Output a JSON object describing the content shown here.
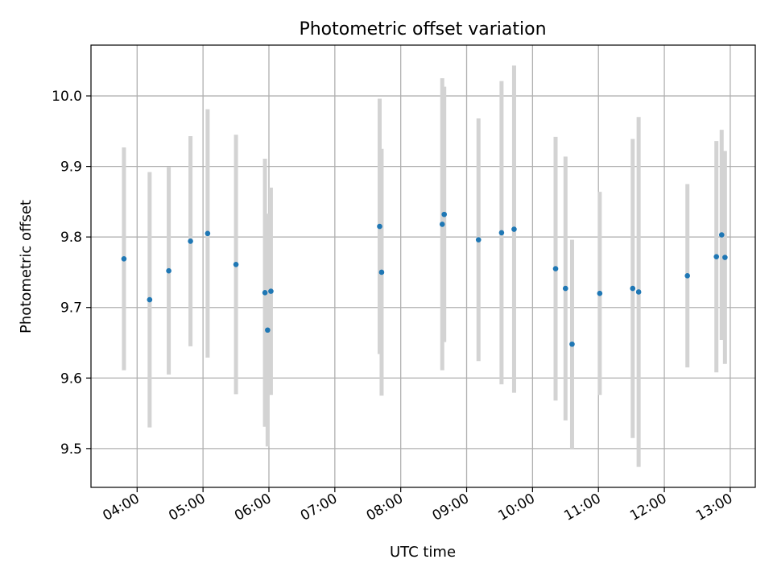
{
  "chart_data": {
    "type": "scatter",
    "title": "Photometric offset variation",
    "xlabel": "UTC time",
    "ylabel": "Photometric offset",
    "x_unit": "UTC hours of day",
    "x_ticks": [
      4,
      5,
      6,
      7,
      8,
      9,
      10,
      11,
      12,
      13
    ],
    "x_tick_labels": [
      "04:00",
      "05:00",
      "06:00",
      "07:00",
      "08:00",
      "09:00",
      "10:00",
      "11:00",
      "12:00",
      "13:00"
    ],
    "xlim": [
      3.3,
      13.38
    ],
    "y_ticks": [
      9.5,
      9.6,
      9.7,
      9.8,
      9.9,
      10.0
    ],
    "y_tick_labels": [
      "9.5",
      "9.6",
      "9.7",
      "9.8",
      "9.9",
      "10.0"
    ],
    "ylim": [
      9.445,
      10.072
    ],
    "grid": true,
    "point_color": "#1f77b4",
    "errorbar_color": "#d3d3d3",
    "series": [
      {
        "points": [
          {
            "x": 3.8,
            "y": 9.769,
            "err": 0.158
          },
          {
            "x": 4.19,
            "y": 9.711,
            "err": 0.181
          },
          {
            "x": 4.48,
            "y": 9.752,
            "err": 0.147
          },
          {
            "x": 4.81,
            "y": 9.794,
            "err": 0.149
          },
          {
            "x": 5.07,
            "y": 9.805,
            "err": 0.176
          },
          {
            "x": 5.5,
            "y": 9.761,
            "err": 0.184
          },
          {
            "x": 5.94,
            "y": 9.721,
            "err": 0.19
          },
          {
            "x": 5.98,
            "y": 9.668,
            "err": 0.165
          },
          {
            "x": 6.03,
            "y": 9.723,
            "err": 0.147
          },
          {
            "x": 7.68,
            "y": 9.815,
            "err": 0.181
          },
          {
            "x": 7.71,
            "y": 9.75,
            "err": 0.175
          },
          {
            "x": 8.63,
            "y": 9.818,
            "err": 0.207
          },
          {
            "x": 8.66,
            "y": 9.832,
            "err": 0.181
          },
          {
            "x": 9.18,
            "y": 9.796,
            "err": 0.172
          },
          {
            "x": 9.53,
            "y": 9.806,
            "err": 0.215
          },
          {
            "x": 9.72,
            "y": 9.811,
            "err": 0.232
          },
          {
            "x": 10.35,
            "y": 9.755,
            "err": 0.187
          },
          {
            "x": 10.5,
            "y": 9.727,
            "err": 0.187
          },
          {
            "x": 10.6,
            "y": 9.648,
            "err": 0.148
          },
          {
            "x": 11.02,
            "y": 9.72,
            "err": 0.144
          },
          {
            "x": 11.52,
            "y": 9.727,
            "err": 0.212
          },
          {
            "x": 11.61,
            "y": 9.722,
            "err": 0.248
          },
          {
            "x": 12.35,
            "y": 9.745,
            "err": 0.13
          },
          {
            "x": 12.79,
            "y": 9.772,
            "err": 0.164
          },
          {
            "x": 12.87,
            "y": 9.803,
            "err": 0.149
          },
          {
            "x": 12.92,
            "y": 9.771,
            "err": 0.151
          }
        ]
      }
    ]
  }
}
